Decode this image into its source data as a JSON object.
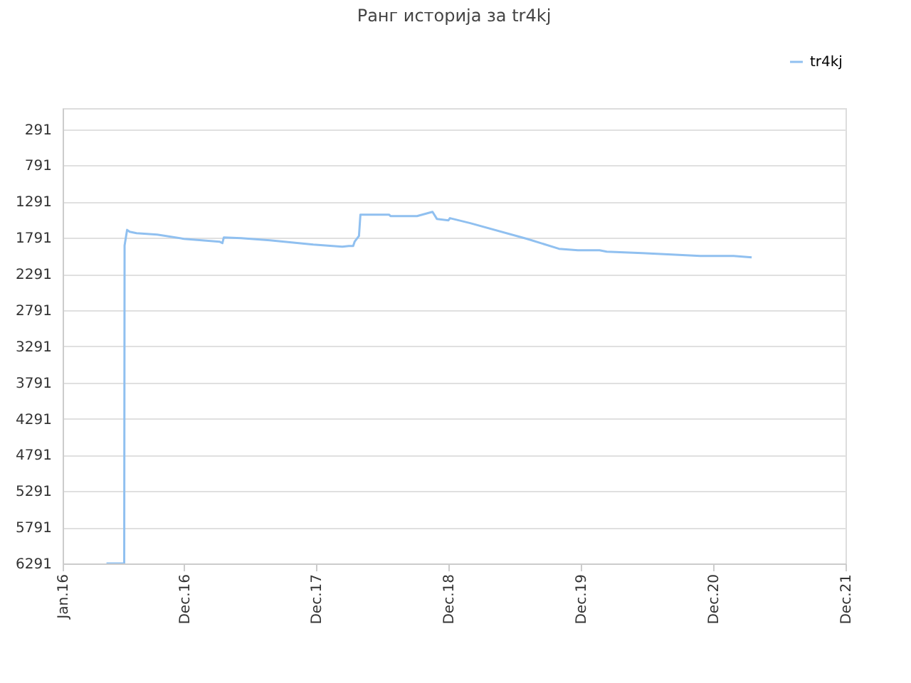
{
  "chart_data": {
    "type": "line",
    "title": "Ранг историја за tr4kj",
    "x": [
      "2016-05-01",
      "2016-06-19",
      "2016-06-20",
      "2016-06-27",
      "2016-07-04",
      "2016-07-23",
      "2016-09-18",
      "2016-12-01",
      "2017-03-09",
      "2017-03-17",
      "2017-03-21",
      "2017-05-08",
      "2017-07-26",
      "2017-11-23",
      "2018-02-11",
      "2018-03-01",
      "2018-03-13",
      "2018-03-17",
      "2018-03-29",
      "2018-04-02",
      "2018-06-20",
      "2018-06-24",
      "2018-09-05",
      "2018-10-18",
      "2018-10-30",
      "2018-12-01",
      "2018-12-05",
      "2019-01-30",
      "2019-07-06",
      "2019-10-02",
      "2019-11-23",
      "2020-01-22",
      "2020-02-11",
      "2020-05-19",
      "2020-08-08",
      "2020-10-26",
      "2021-01-26",
      "2021-03-17"
    ],
    "series": [
      {
        "name": "tr4kj",
        "color": "#90c0f0",
        "values": [
          6291,
          6291,
          1898,
          1682,
          1707,
          1727,
          1747,
          1806,
          1845,
          1865,
          1786,
          1796,
          1825,
          1884,
          1914,
          1904,
          1904,
          1845,
          1766,
          1471,
          1471,
          1491,
          1491,
          1432,
          1530,
          1550,
          1520,
          1589,
          1806,
          1943,
          1963,
          1963,
          1983,
          2002,
          2022,
          2042,
          2042,
          2061
        ]
      }
    ],
    "xlim": [
      "2016-01-01",
      "2021-12-01"
    ],
    "xticks": [
      {
        "value": "2016-01-01",
        "label": "Jan.16"
      },
      {
        "value": "2016-12-01",
        "label": "Dec.16"
      },
      {
        "value": "2017-12-01",
        "label": "Dec.17"
      },
      {
        "value": "2018-12-01",
        "label": "Dec.18"
      },
      {
        "value": "2019-12-01",
        "label": "Dec.19"
      },
      {
        "value": "2020-12-01",
        "label": "Dec.20"
      },
      {
        "value": "2021-12-01",
        "label": "Dec.21"
      }
    ],
    "ylim": [
      6291,
      0
    ],
    "yticks": [
      291,
      791,
      1291,
      1791,
      2291,
      2791,
      3291,
      3791,
      4291,
      4791,
      5291,
      5791,
      6291
    ],
    "grid": "y",
    "legend": "top right"
  }
}
